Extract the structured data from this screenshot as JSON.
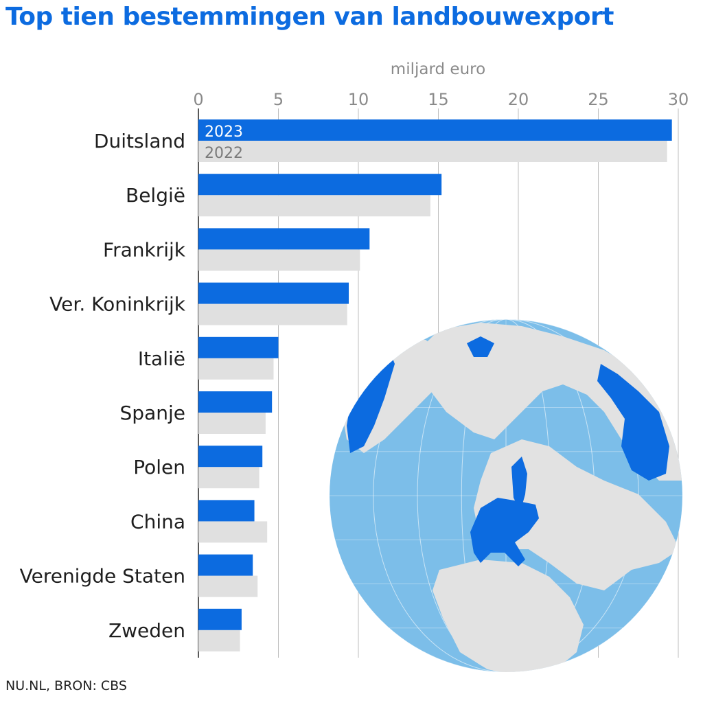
{
  "title": "Top tien bestemmingen van landbouwexport",
  "source": "NU.NL, BRON: CBS",
  "colors": {
    "title": "#0c6be0",
    "series_2023": "#0c6be0",
    "series_2022": "#e0e0e0",
    "ocean": "#7cbee9",
    "land": "#e2e2e2",
    "highlight": "#0c6be0"
  },
  "chart_data": {
    "type": "bar",
    "orientation": "horizontal",
    "unit_label": "miljard euro",
    "xlim": [
      0,
      30
    ],
    "x_ticks": [
      "0",
      "5",
      "10",
      "15",
      "20",
      "25",
      "30"
    ],
    "grid": true,
    "legend": "inside-first-bars",
    "categories": [
      "Duitsland",
      "België",
      "Frankrijk",
      "Ver. Koninkrijk",
      "Italië",
      "Spanje",
      "Polen",
      "China",
      "Verenigde Staten",
      "Zweden"
    ],
    "series": [
      {
        "name": "2023",
        "values": [
          29.6,
          15.2,
          10.7,
          9.4,
          5.0,
          4.6,
          4.0,
          3.5,
          3.4,
          2.7
        ]
      },
      {
        "name": "2022",
        "values": [
          29.3,
          14.5,
          10.1,
          9.3,
          4.7,
          4.2,
          3.8,
          4.3,
          3.7,
          2.6
        ]
      }
    ]
  },
  "globe": {
    "icon": "globe-europe-highlight-icon"
  }
}
